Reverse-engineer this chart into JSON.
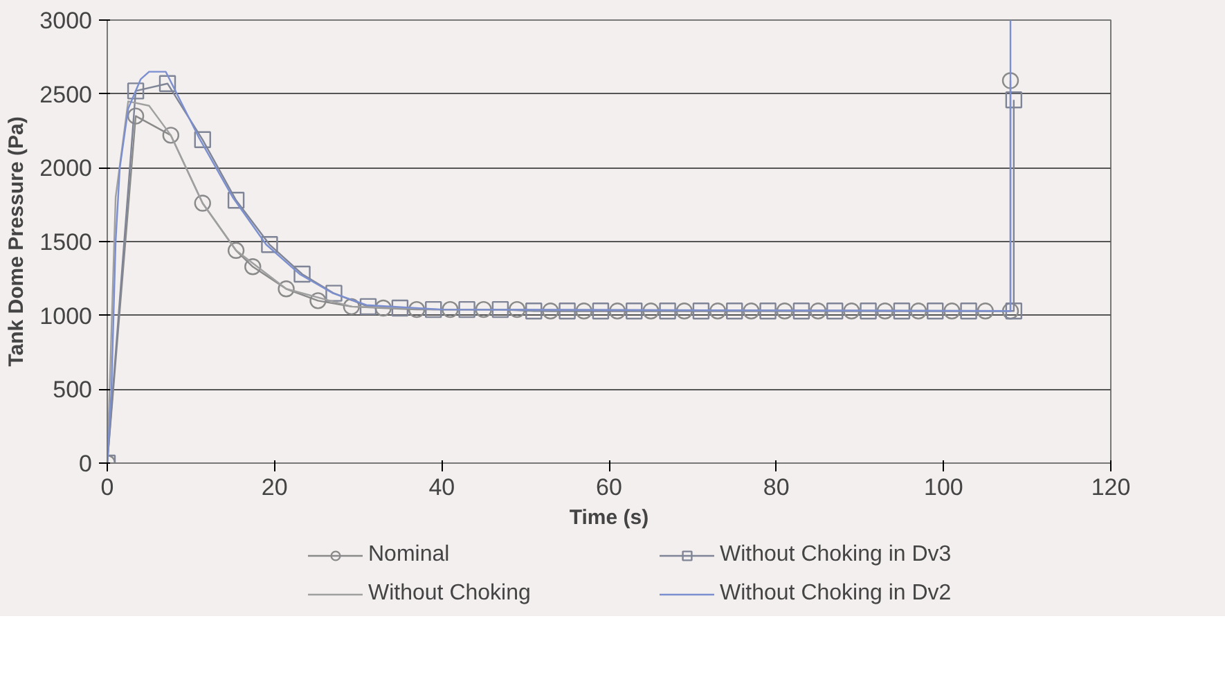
{
  "chart_data": {
    "type": "line",
    "xlabel": "Time (s)",
    "ylabel": "Tank Dome Pressure (Pa)",
    "xlim": [
      0,
      120
    ],
    "xticks": [
      0,
      20,
      40,
      60,
      80,
      100,
      120
    ],
    "ylim": [
      0,
      3000
    ],
    "yticks": [
      0,
      500,
      1000,
      1500,
      2000,
      2500,
      3000
    ],
    "grid": "y",
    "legend": "bottom",
    "series": [
      {
        "name": "Nominal",
        "color": "#8a8a8a",
        "marker": "circle",
        "x": [
          0,
          3.4,
          7.6,
          11.4,
          15.4,
          17.4,
          21.4,
          25.2,
          29.2,
          33,
          37,
          41,
          45,
          49,
          53,
          57,
          61,
          65,
          69,
          73,
          77,
          81,
          85,
          89,
          93,
          97,
          101,
          105,
          108,
          108
        ],
        "values": [
          0,
          2350,
          2220,
          1760,
          1440,
          1330,
          1180,
          1100,
          1060,
          1050,
          1040,
          1040,
          1040,
          1040,
          1030,
          1030,
          1030,
          1030,
          1030,
          1030,
          1030,
          1030,
          1030,
          1030,
          1030,
          1030,
          1030,
          1030,
          1030,
          2590
        ]
      },
      {
        "name": "Without Choking in Dv3",
        "color": "#7f8596",
        "marker": "square",
        "x": [
          0,
          3.4,
          7.2,
          11.4,
          15.4,
          19.4,
          23.3,
          27.1,
          31.2,
          35,
          39,
          43,
          47,
          51,
          55,
          59,
          63,
          67,
          71,
          75,
          79,
          83,
          87,
          91,
          95,
          99,
          103,
          108.4,
          108.4
        ],
        "values": [
          0,
          2520,
          2570,
          2190,
          1780,
          1480,
          1280,
          1150,
          1060,
          1050,
          1040,
          1040,
          1040,
          1030,
          1030,
          1030,
          1030,
          1030,
          1030,
          1030,
          1030,
          1030,
          1030,
          1030,
          1030,
          1030,
          1030,
          1030,
          2460
        ]
      },
      {
        "name": "Without Choking",
        "color": "#a0a0a0",
        "marker": "none",
        "x": [
          0,
          1,
          2.5,
          5,
          7.6,
          11.4,
          15.4,
          21.4,
          29.2,
          40,
          108
        ],
        "values": [
          0,
          1800,
          2450,
          2420,
          2220,
          1760,
          1440,
          1180,
          1060,
          1040,
          1030
        ]
      },
      {
        "name": "Without Choking in Dv2",
        "color": "#7b8fd0",
        "marker": "none",
        "x": [
          0,
          0.5,
          1,
          1.5,
          2.5,
          4,
          5,
          7,
          11,
          15,
          19,
          23,
          27,
          31,
          40,
          108,
          108
        ],
        "values": [
          0,
          500,
          1500,
          2000,
          2400,
          2600,
          2650,
          2650,
          2200,
          1800,
          1480,
          1280,
          1150,
          1070,
          1040,
          1030,
          3000
        ]
      }
    ]
  }
}
